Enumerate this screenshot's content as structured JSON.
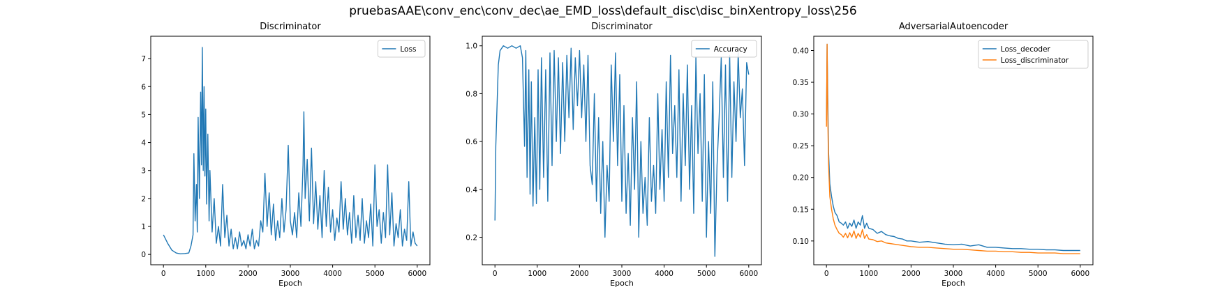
{
  "figure": {
    "suptitle": "pruebasAAE\\conv_enc\\conv_dec\\ae_EMD_loss\\default_disc\\disc_binXentropy_loss\\256"
  },
  "chart_data": [
    {
      "type": "line",
      "title": "Discriminator",
      "xlabel": "Epoch",
      "ylabel": "",
      "xlim": [
        -300,
        6300
      ],
      "ylim": [
        -0.37,
        7.8
      ],
      "xticks": [
        0,
        1000,
        2000,
        3000,
        4000,
        5000,
        6000
      ],
      "yticks": [
        0,
        1,
        2,
        3,
        4,
        5,
        6,
        7
      ],
      "legend_position": "upper right",
      "series": [
        {
          "name": "Loss",
          "color": "#1f77b4",
          "x": [
            0,
            100,
            200,
            300,
            400,
            500,
            600,
            650,
            700,
            720,
            750,
            780,
            800,
            820,
            850,
            880,
            900,
            920,
            940,
            960,
            980,
            1000,
            1020,
            1050,
            1080,
            1100,
            1150,
            1200,
            1250,
            1300,
            1350,
            1400,
            1450,
            1500,
            1550,
            1600,
            1650,
            1700,
            1750,
            1800,
            1850,
            1900,
            1950,
            2000,
            2050,
            2100,
            2150,
            2200,
            2250,
            2300,
            2350,
            2400,
            2450,
            2500,
            2550,
            2600,
            2650,
            2700,
            2750,
            2800,
            2850,
            2900,
            2950,
            3000,
            3050,
            3100,
            3150,
            3200,
            3250,
            3300,
            3320,
            3350,
            3400,
            3450,
            3500,
            3550,
            3600,
            3650,
            3700,
            3750,
            3800,
            3850,
            3900,
            3950,
            4000,
            4050,
            4100,
            4150,
            4200,
            4250,
            4300,
            4350,
            4400,
            4450,
            4500,
            4550,
            4600,
            4650,
            4700,
            4750,
            4800,
            4850,
            4900,
            4950,
            5000,
            5050,
            5100,
            5150,
            5200,
            5250,
            5300,
            5350,
            5400,
            5450,
            5500,
            5550,
            5600,
            5650,
            5700,
            5750,
            5800,
            5850,
            5900,
            5950,
            6000
          ],
          "y": [
            0.7,
            0.4,
            0.15,
            0.05,
            0.02,
            0.03,
            0.05,
            0.3,
            0.7,
            3.6,
            1.2,
            2.5,
            0.8,
            4.9,
            2.0,
            5.8,
            3.2,
            7.4,
            3.0,
            6.0,
            2.8,
            5.2,
            1.8,
            4.3,
            1.2,
            3.0,
            0.8,
            2.0,
            0.4,
            1.0,
            0.3,
            2.5,
            0.6,
            1.4,
            0.3,
            0.9,
            0.2,
            0.6,
            0.2,
            0.8,
            0.3,
            0.5,
            0.2,
            0.7,
            0.3,
            0.9,
            0.2,
            0.5,
            0.3,
            1.2,
            0.8,
            2.9,
            1.0,
            2.2,
            0.7,
            1.8,
            0.5,
            1.2,
            0.6,
            2.0,
            0.8,
            1.6,
            3.9,
            1.2,
            0.7,
            1.5,
            0.6,
            2.2,
            1.0,
            3.2,
            5.1,
            2.0,
            3.4,
            1.2,
            3.8,
            1.1,
            2.6,
            0.9,
            2.1,
            0.6,
            3.0,
            1.0,
            2.4,
            0.8,
            1.6,
            0.5,
            1.3,
            0.8,
            2.6,
            0.9,
            2.0,
            0.7,
            1.5,
            0.4,
            2.1,
            0.6,
            1.4,
            0.5,
            2.0,
            0.4,
            1.2,
            0.6,
            1.8,
            0.3,
            3.2,
            1.0,
            1.6,
            0.4,
            1.5,
            0.6,
            3.2,
            0.7,
            2.2,
            0.3,
            1.1,
            0.6,
            1.6,
            0.3,
            0.9,
            0.5,
            2.6,
            0.3,
            0.8,
            0.4,
            0.3
          ]
        }
      ]
    },
    {
      "type": "line",
      "title": "Discriminator",
      "xlabel": "Epoch",
      "ylabel": "",
      "xlim": [
        -300,
        6300
      ],
      "ylim": [
        0.085,
        1.04
      ],
      "xticks": [
        0,
        1000,
        2000,
        3000,
        4000,
        5000,
        6000
      ],
      "yticks": [
        0.2,
        0.4,
        0.6,
        0.8,
        1.0
      ],
      "legend_position": "upper right",
      "series": [
        {
          "name": "Accuracy",
          "color": "#1f77b4",
          "x": [
            0,
            20,
            50,
            80,
            120,
            200,
            300,
            400,
            500,
            600,
            650,
            700,
            730,
            760,
            800,
            830,
            860,
            900,
            940,
            980,
            1020,
            1060,
            1100,
            1150,
            1200,
            1250,
            1300,
            1350,
            1400,
            1450,
            1500,
            1550,
            1600,
            1650,
            1700,
            1750,
            1800,
            1850,
            1900,
            1950,
            2000,
            2050,
            2100,
            2150,
            2200,
            2250,
            2300,
            2350,
            2400,
            2450,
            2500,
            2550,
            2600,
            2650,
            2700,
            2750,
            2800,
            2850,
            2900,
            2950,
            3000,
            3050,
            3100,
            3150,
            3200,
            3250,
            3300,
            3350,
            3400,
            3450,
            3500,
            3550,
            3600,
            3650,
            3700,
            3750,
            3800,
            3850,
            3900,
            3950,
            4000,
            4050,
            4100,
            4150,
            4200,
            4250,
            4300,
            4350,
            4400,
            4450,
            4500,
            4550,
            4600,
            4650,
            4700,
            4750,
            4800,
            4850,
            4900,
            4950,
            5000,
            5050,
            5100,
            5150,
            5200,
            5250,
            5300,
            5350,
            5400,
            5450,
            5500,
            5550,
            5600,
            5650,
            5700,
            5750,
            5800,
            5850,
            5900,
            5950,
            6000
          ],
          "y": [
            0.27,
            0.58,
            0.75,
            0.92,
            0.98,
            1.0,
            0.99,
            1.0,
            0.99,
            1.0,
            0.95,
            0.58,
            0.98,
            0.45,
            0.9,
            0.38,
            0.85,
            0.33,
            0.7,
            0.34,
            0.9,
            0.4,
            0.95,
            0.45,
            0.9,
            0.35,
            0.97,
            0.5,
            0.98,
            0.6,
            0.95,
            0.55,
            0.93,
            0.6,
            0.96,
            0.7,
            0.99,
            0.65,
            0.95,
            0.75,
            0.98,
            0.7,
            0.92,
            0.6,
            0.96,
            0.5,
            0.42,
            0.8,
            0.35,
            0.7,
            0.3,
            0.6,
            0.2,
            0.5,
            0.35,
            0.92,
            0.6,
            0.97,
            0.5,
            0.88,
            0.35,
            0.75,
            0.3,
            0.55,
            0.25,
            0.7,
            0.4,
            0.85,
            0.2,
            0.6,
            0.3,
            0.45,
            0.25,
            0.7,
            0.35,
            0.5,
            0.3,
            0.8,
            0.4,
            0.65,
            0.35,
            0.85,
            0.45,
            0.96,
            0.55,
            0.75,
            0.45,
            0.9,
            0.35,
            0.8,
            0.5,
            0.92,
            0.4,
            0.75,
            0.3,
            0.95,
            0.55,
            0.8,
            0.35,
            0.88,
            0.2,
            0.6,
            0.3,
            0.85,
            0.12,
            0.5,
            0.7,
            0.95,
            0.45,
            0.92,
            0.35,
            0.96,
            0.45,
            0.85,
            0.6,
            0.97,
            0.7,
            0.82,
            0.5,
            0.93,
            0.88
          ]
        }
      ]
    },
    {
      "type": "line",
      "title": "AdversarialAutoencoder",
      "xlabel": "Epoch",
      "ylabel": "",
      "xlim": [
        -300,
        6300
      ],
      "ylim": [
        0.0625,
        0.4225
      ],
      "xticks": [
        0,
        1000,
        2000,
        3000,
        4000,
        5000,
        6000
      ],
      "yticks": [
        0.1,
        0.15,
        0.2,
        0.25,
        0.3,
        0.35,
        0.4
      ],
      "legend_position": "upper right",
      "series": [
        {
          "name": "Loss_decoder",
          "color": "#1f77b4",
          "x": [
            0,
            15,
            30,
            50,
            80,
            120,
            160,
            200,
            250,
            300,
            350,
            400,
            450,
            500,
            550,
            600,
            650,
            700,
            750,
            800,
            850,
            900,
            950,
            1000,
            1100,
            1200,
            1300,
            1400,
            1500,
            1600,
            1700,
            1800,
            1900,
            2000,
            2200,
            2400,
            2600,
            2800,
            3000,
            3200,
            3400,
            3600,
            3800,
            4000,
            4200,
            4400,
            4600,
            4800,
            5000,
            5200,
            5400,
            5600,
            5800,
            6000
          ],
          "y": [
            0.29,
            0.41,
            0.33,
            0.24,
            0.19,
            0.17,
            0.155,
            0.145,
            0.14,
            0.13,
            0.128,
            0.125,
            0.13,
            0.12,
            0.128,
            0.123,
            0.133,
            0.12,
            0.13,
            0.125,
            0.14,
            0.12,
            0.128,
            0.12,
            0.118,
            0.112,
            0.115,
            0.11,
            0.108,
            0.107,
            0.104,
            0.103,
            0.1,
            0.1,
            0.098,
            0.099,
            0.097,
            0.095,
            0.094,
            0.095,
            0.092,
            0.094,
            0.09,
            0.09,
            0.089,
            0.088,
            0.088,
            0.087,
            0.087,
            0.086,
            0.086,
            0.085,
            0.085,
            0.085
          ]
        },
        {
          "name": "Loss_discriminator",
          "color": "#ff7f0e",
          "x": [
            0,
            15,
            30,
            50,
            80,
            120,
            160,
            200,
            250,
            300,
            350,
            400,
            450,
            500,
            550,
            600,
            650,
            700,
            750,
            800,
            850,
            900,
            950,
            1000,
            1100,
            1200,
            1300,
            1400,
            1500,
            1600,
            1700,
            1800,
            1900,
            2000,
            2200,
            2400,
            2600,
            2800,
            3000,
            3200,
            3400,
            3600,
            3800,
            4000,
            4200,
            4400,
            4600,
            4800,
            5000,
            5200,
            5400,
            5600,
            5800,
            6000
          ],
          "y": [
            0.28,
            0.41,
            0.3,
            0.22,
            0.17,
            0.15,
            0.135,
            0.125,
            0.118,
            0.112,
            0.11,
            0.106,
            0.112,
            0.105,
            0.113,
            0.106,
            0.116,
            0.104,
            0.112,
            0.106,
            0.118,
            0.104,
            0.11,
            0.103,
            0.102,
            0.099,
            0.1,
            0.097,
            0.096,
            0.095,
            0.094,
            0.093,
            0.092,
            0.091,
            0.09,
            0.09,
            0.089,
            0.088,
            0.087,
            0.087,
            0.086,
            0.085,
            0.084,
            0.084,
            0.083,
            0.083,
            0.082,
            0.082,
            0.081,
            0.081,
            0.081,
            0.08,
            0.08,
            0.08
          ]
        }
      ]
    }
  ]
}
